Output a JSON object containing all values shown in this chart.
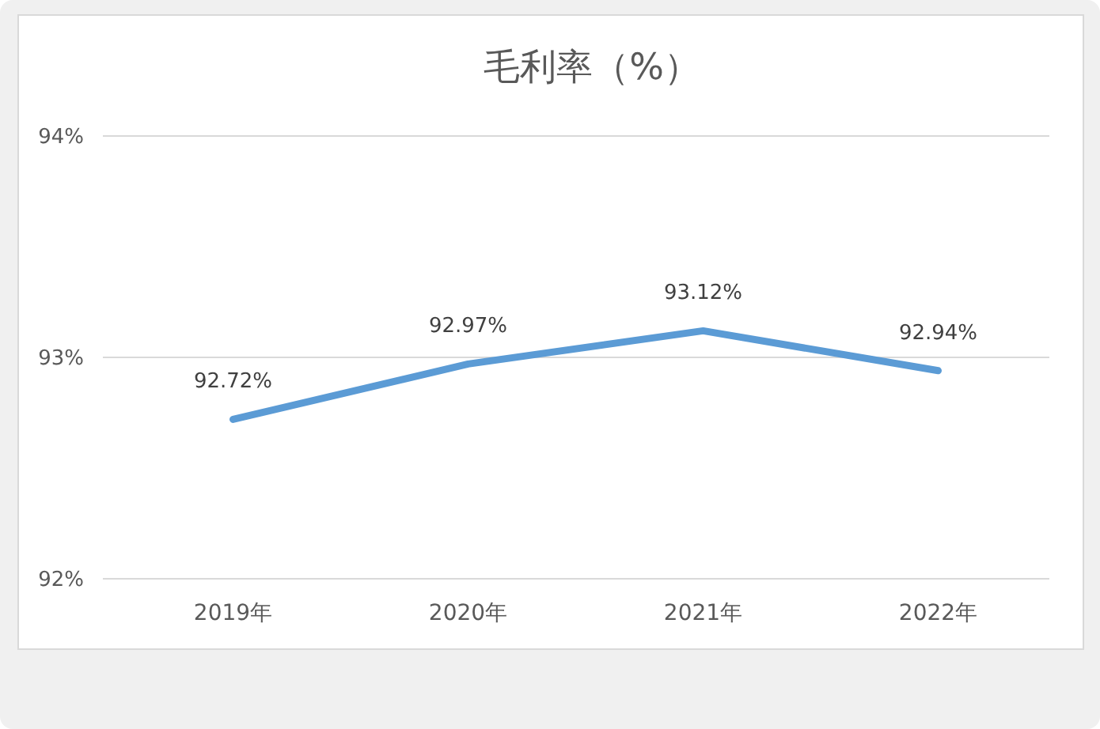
{
  "chart_data": {
    "type": "line",
    "title": "毛利率（%）",
    "categories": [
      "2019年",
      "2020年",
      "2021年",
      "2022年"
    ],
    "values": [
      92.72,
      92.97,
      93.12,
      92.94
    ],
    "value_labels": [
      "92.72%",
      "92.97%",
      "93.12%",
      "92.94%"
    ],
    "color": "#5b9bd5",
    "ylim": [
      92,
      94
    ],
    "yticks": [
      {
        "value": 92,
        "label": "92%"
      },
      {
        "value": 93,
        "label": "93%"
      },
      {
        "value": 94,
        "label": "94%"
      }
    ],
    "grid": "y"
  }
}
